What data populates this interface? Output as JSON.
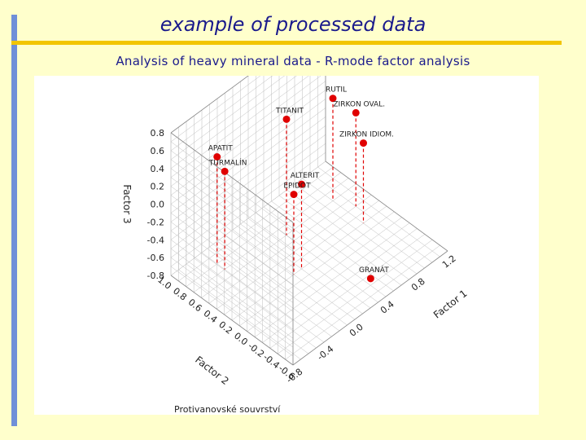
{
  "slide": {
    "title": "example of processed data",
    "subtitle": "Analysis of heavy mineral data - R-mode factor analysis"
  },
  "colors": {
    "background": "#ffffcc",
    "accent_bar": "#6f8fd8",
    "rule": "#f2c500",
    "title_text": "#1a1a8c",
    "point": "#e00000",
    "grid": "#bdbdbd"
  },
  "chart_data": {
    "type": "scatter",
    "subtype": "3d-scatter",
    "caption": "Protivanovské souvrství",
    "axes": {
      "x": {
        "label": "Factor 1",
        "ticks": [
          "-0.8",
          "-0.4",
          "0.0",
          "0.4",
          "0.8",
          "1.2"
        ],
        "range": [
          -0.8,
          1.2
        ]
      },
      "y": {
        "label": "Factor 2",
        "ticks": [
          "1.0",
          "0.8",
          "0.6",
          "0.4",
          "0.2",
          "0.0",
          "-0.2",
          "-0.4",
          "-0.6"
        ],
        "range": [
          -0.6,
          1.0
        ]
      },
      "z": {
        "label": "Factor 3",
        "ticks": [
          "0.8",
          "0.6",
          "0.4",
          "0.2",
          "0.0",
          "-0.2",
          "-0.4",
          "-0.6",
          "-0.8"
        ],
        "range": [
          -0.8,
          0.8
        ]
      }
    },
    "grid": true,
    "drop_lines": true,
    "points": [
      {
        "name": "APATIT",
        "f1": -0.4,
        "f2": 0.8,
        "f3": 0.4
      },
      {
        "name": "TURMALÍN",
        "f1": -0.4,
        "f2": 0.7,
        "f3": 0.3
      },
      {
        "name": "TITANIT",
        "f1": 0.3,
        "f2": 0.6,
        "f3": 0.5
      },
      {
        "name": "ALTERIT",
        "f1": 0.1,
        "f2": 0.2,
        "f3": 0.15
      },
      {
        "name": "EPIDOT",
        "f1": 0.0,
        "f2": 0.2,
        "f3": 0.1
      },
      {
        "name": "RUTIL",
        "f1": 0.9,
        "f2": 0.6,
        "f3": 0.35
      },
      {
        "name": "ZIRKON OVAL.",
        "f1": 1.0,
        "f2": 0.4,
        "f3": 0.25
      },
      {
        "name": "ZIRKON IDIOM.",
        "f1": 0.9,
        "f2": 0.2,
        "f3": 0.1
      },
      {
        "name": "GRANÁT",
        "f1": 0.5,
        "f2": -0.3,
        "f3": -0.85
      }
    ]
  }
}
